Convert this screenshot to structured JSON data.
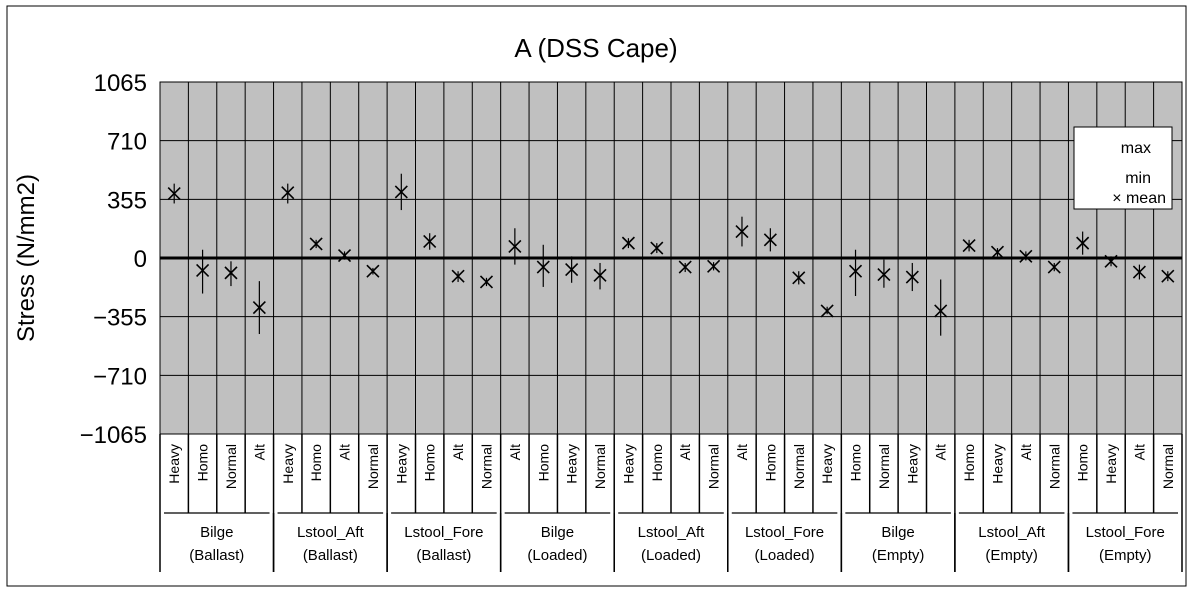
{
  "chart_data": {
    "type": "scatter",
    "title": "A (DSS Cape)",
    "ylabel": "Stress (N/mm2)",
    "xlabel": "",
    "ylim": [
      -1065,
      1065
    ],
    "yticks": [
      1065,
      710,
      355,
      0,
      -355,
      -710,
      -1065
    ],
    "ytick_labels": [
      "1065",
      "710",
      "355",
      "0",
      "−355",
      "−710",
      "−1065"
    ],
    "grid": true,
    "legend_position": "top-right",
    "legend": [
      {
        "label": "max",
        "marker": "none"
      },
      {
        "label": "min",
        "marker": "none"
      },
      {
        "label": "× mean",
        "marker": "x"
      }
    ],
    "groups": [
      {
        "line1": "Bilge",
        "line2": "(Ballast)",
        "cases": [
          {
            "label": "Heavy",
            "mean": 390,
            "min": 330,
            "max": 450
          },
          {
            "label": "Homo",
            "mean": -75,
            "min": -215,
            "max": 50
          },
          {
            "label": "Normal",
            "mean": -90,
            "min": -170,
            "max": -20
          },
          {
            "label": "Alt",
            "mean": -300,
            "min": -460,
            "max": -140
          }
        ]
      },
      {
        "line1": "Lstool_Aft",
        "line2": "(Ballast)",
        "cases": [
          {
            "label": "Heavy",
            "mean": 395,
            "min": 330,
            "max": 450
          },
          {
            "label": "Homo",
            "mean": 85,
            "min": 60,
            "max": 110
          },
          {
            "label": "Alt",
            "mean": 15,
            "min": -10,
            "max": 40
          },
          {
            "label": "Normal",
            "mean": -80,
            "min": -100,
            "max": -60
          }
        ]
      },
      {
        "line1": "Lstool_Fore",
        "line2": "(Ballast)",
        "cases": [
          {
            "label": "Heavy",
            "mean": 400,
            "min": 290,
            "max": 510
          },
          {
            "label": "Homo",
            "mean": 100,
            "min": 50,
            "max": 150
          },
          {
            "label": "Alt",
            "mean": -110,
            "min": -145,
            "max": -80
          },
          {
            "label": "Normal",
            "mean": -145,
            "min": -170,
            "max": -120
          }
        ]
      },
      {
        "line1": "Bilge",
        "line2": "(Loaded)",
        "cases": [
          {
            "label": "Alt",
            "mean": 70,
            "min": -40,
            "max": 180
          },
          {
            "label": "Homo",
            "mean": -55,
            "min": -175,
            "max": 80
          },
          {
            "label": "Heavy",
            "mean": -70,
            "min": -150,
            "max": 10
          },
          {
            "label": "Normal",
            "mean": -105,
            "min": -190,
            "max": -30
          }
        ]
      },
      {
        "line1": "Lstool_Aft",
        "line2": "(Loaded)",
        "cases": [
          {
            "label": "Heavy",
            "mean": 90,
            "min": 60,
            "max": 120
          },
          {
            "label": "Homo",
            "mean": 60,
            "min": 30,
            "max": 90
          },
          {
            "label": "Alt",
            "mean": -55,
            "min": -85,
            "max": -30
          },
          {
            "label": "Normal",
            "mean": -50,
            "min": -75,
            "max": -25
          }
        ]
      },
      {
        "line1": "Lstool_Fore",
        "line2": "(Loaded)",
        "cases": [
          {
            "label": "Alt",
            "mean": 160,
            "min": 70,
            "max": 250
          },
          {
            "label": "Homo",
            "mean": 110,
            "min": 40,
            "max": 180
          },
          {
            "label": "Normal",
            "mean": -120,
            "min": -160,
            "max": -80
          },
          {
            "label": "Heavy",
            "mean": -320,
            "min": -340,
            "max": -295
          }
        ]
      },
      {
        "line1": "Bilge",
        "line2": "(Empty)",
        "cases": [
          {
            "label": "Homo",
            "mean": -80,
            "min": -230,
            "max": 50
          },
          {
            "label": "Normal",
            "mean": -100,
            "min": -180,
            "max": -10
          },
          {
            "label": "Heavy",
            "mean": -115,
            "min": -200,
            "max": -30
          },
          {
            "label": "Alt",
            "mean": -320,
            "min": -470,
            "max": -130
          }
        ]
      },
      {
        "line1": "Lstool_Aft",
        "line2": "(Empty)",
        "cases": [
          {
            "label": "Homo",
            "mean": 75,
            "min": 40,
            "max": 110
          },
          {
            "label": "Heavy",
            "mean": 35,
            "min": 10,
            "max": 60
          },
          {
            "label": "Alt",
            "mean": 10,
            "min": -15,
            "max": 40
          },
          {
            "label": "Normal",
            "mean": -55,
            "min": -80,
            "max": -30
          }
        ]
      },
      {
        "line1": "Lstool_Fore",
        "line2": "(Empty)",
        "cases": [
          {
            "label": "Homo",
            "mean": 90,
            "min": 20,
            "max": 160
          },
          {
            "label": "Heavy",
            "mean": -20,
            "min": -50,
            "max": 10
          },
          {
            "label": "Alt",
            "mean": -85,
            "min": -130,
            "max": -40
          },
          {
            "label": "Normal",
            "mean": -110,
            "min": -140,
            "max": -80
          }
        ]
      }
    ]
  }
}
